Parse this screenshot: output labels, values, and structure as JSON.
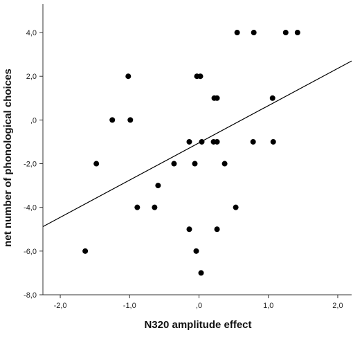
{
  "chart_data": {
    "type": "scatter",
    "title": "",
    "xlabel": "N320 amplitude effect",
    "ylabel": "net number of phonological choices",
    "xlim": [
      -2.25,
      2.2
    ],
    "ylim": [
      -8.0,
      5.3
    ],
    "xticks": [
      -2.0,
      -1.0,
      0.0,
      1.0,
      2.0
    ],
    "xtick_labels": [
      "-2,0",
      "-1,0",
      ",0",
      "1,0",
      "2,0"
    ],
    "yticks": [
      -8.0,
      -6.0,
      -4.0,
      -2.0,
      0.0,
      2.0,
      4.0
    ],
    "ytick_labels": [
      "-8,0",
      "-6,0",
      "-4,0",
      "-2,0",
      ",0",
      "2,0",
      "4,0"
    ],
    "grid": false,
    "legend": "none",
    "marker_color": "#000000",
    "line_color": "#000000",
    "points": [
      {
        "x": -1.64,
        "y": -6
      },
      {
        "x": -1.48,
        "y": -2
      },
      {
        "x": -1.25,
        "y": 0
      },
      {
        "x": -1.02,
        "y": 2
      },
      {
        "x": -0.99,
        "y": 0
      },
      {
        "x": -0.89,
        "y": -4
      },
      {
        "x": -0.64,
        "y": -4
      },
      {
        "x": -0.59,
        "y": -3
      },
      {
        "x": -0.36,
        "y": -2
      },
      {
        "x": -0.14,
        "y": -5
      },
      {
        "x": -0.14,
        "y": -1
      },
      {
        "x": -0.06,
        "y": -2
      },
      {
        "x": -0.04,
        "y": -6
      },
      {
        "x": -0.03,
        "y": 2
      },
      {
        "x": 0.02,
        "y": 2
      },
      {
        "x": 0.03,
        "y": -7
      },
      {
        "x": 0.04,
        "y": -1
      },
      {
        "x": 0.21,
        "y": -1
      },
      {
        "x": 0.22,
        "y": 1
      },
      {
        "x": 0.26,
        "y": 1
      },
      {
        "x": 0.26,
        "y": -5
      },
      {
        "x": 0.26,
        "y": -1
      },
      {
        "x": 0.37,
        "y": -2
      },
      {
        "x": 0.53,
        "y": -4
      },
      {
        "x": 0.55,
        "y": 4
      },
      {
        "x": 0.78,
        "y": -1
      },
      {
        "x": 0.79,
        "y": 4
      },
      {
        "x": 1.06,
        "y": 1
      },
      {
        "x": 1.07,
        "y": -1
      },
      {
        "x": 1.25,
        "y": 4
      },
      {
        "x": 1.42,
        "y": 4
      }
    ],
    "fit_line": {
      "x": [
        -2.25,
        2.2
      ],
      "y": [
        -4.88,
        2.7
      ]
    }
  }
}
